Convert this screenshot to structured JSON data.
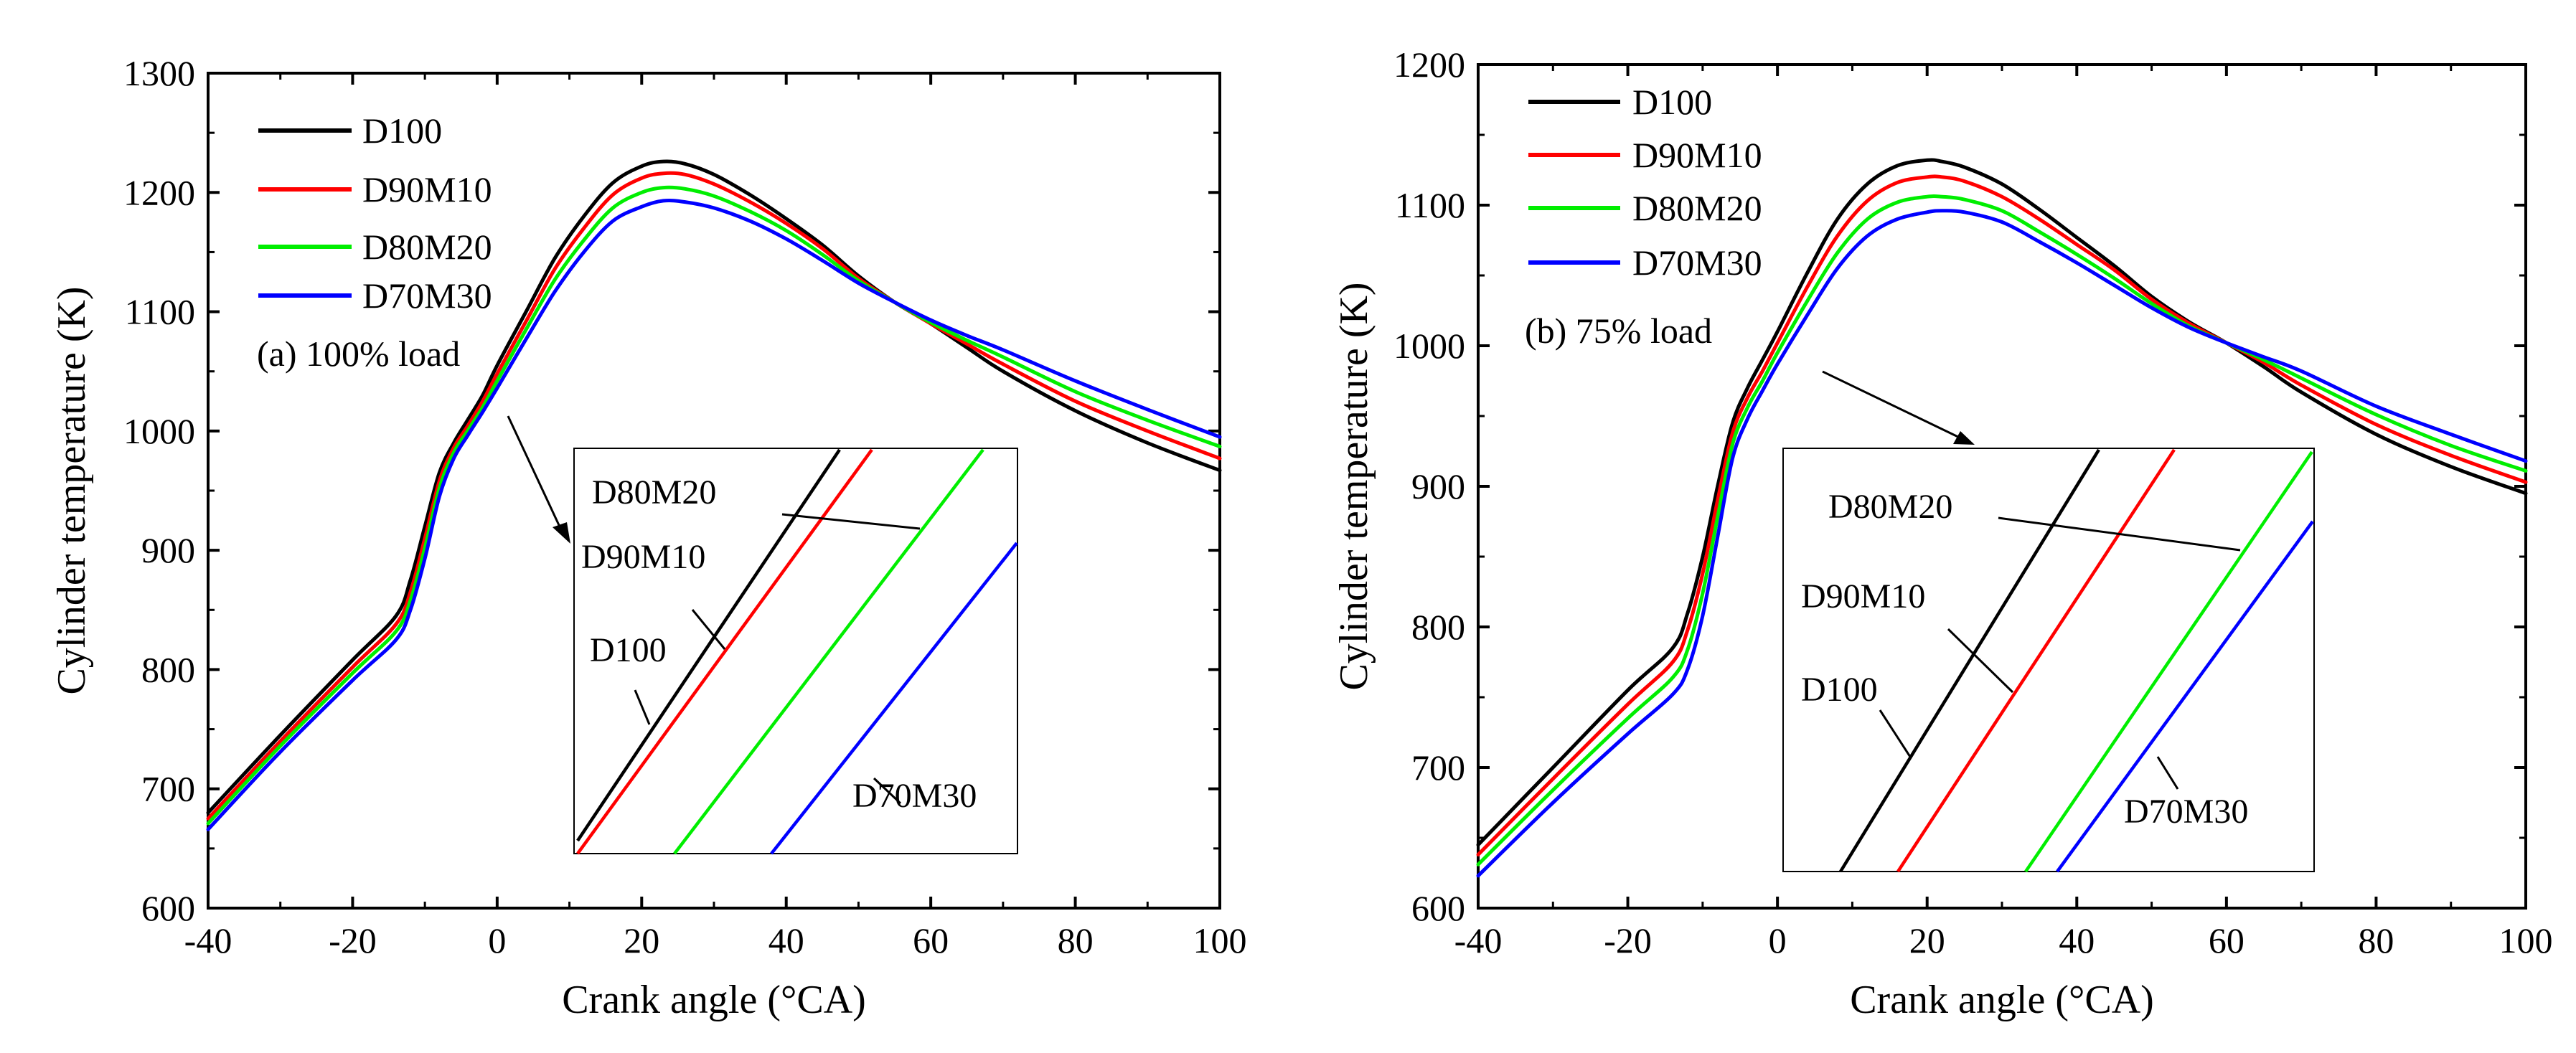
{
  "chart_data": [
    {
      "type": "line",
      "panel_label": "(a) 100% load",
      "xlabel": "Crank angle (°CA)",
      "ylabel": "Cylinder temperature (K)",
      "xlim": [
        -40,
        100
      ],
      "ylim": [
        600,
        1300
      ],
      "xticks": [
        -40,
        -20,
        0,
        20,
        40,
        60,
        80,
        100
      ],
      "yticks": [
        600,
        700,
        800,
        900,
        1000,
        1100,
        1200,
        1300
      ],
      "x": [
        -40,
        -30,
        -20,
        -14,
        -12,
        -10,
        -8,
        -6,
        -4,
        -2,
        0,
        4,
        8,
        12,
        16,
        20,
        23,
        26,
        30,
        35,
        40,
        45,
        50,
        55,
        60,
        65,
        70,
        80,
        90,
        100
      ],
      "legend_position": "top-left",
      "series": [
        {
          "name": "D100",
          "color": "#000000",
          "values": [
            680,
            745,
            808,
            845,
            875,
            920,
            965,
            990,
            1010,
            1030,
            1055,
            1100,
            1145,
            1180,
            1208,
            1222,
            1226,
            1224,
            1215,
            1198,
            1178,
            1156,
            1130,
            1108,
            1090,
            1070,
            1050,
            1017,
            990,
            967
          ]
        },
        {
          "name": "D90M10",
          "color": "#ff0000",
          "values": [
            675,
            740,
            802,
            838,
            865,
            910,
            958,
            986,
            1005,
            1025,
            1048,
            1092,
            1136,
            1170,
            1198,
            1212,
            1216,
            1215,
            1207,
            1192,
            1174,
            1153,
            1128,
            1108,
            1090,
            1073,
            1056,
            1025,
            1000,
            977
          ]
        },
        {
          "name": "D80M20",
          "color": "#00ee00",
          "values": [
            671,
            736,
            797,
            832,
            858,
            902,
            952,
            982,
            1001,
            1020,
            1042,
            1085,
            1127,
            1160,
            1187,
            1200,
            1204,
            1203,
            1197,
            1184,
            1168,
            1148,
            1126,
            1108,
            1091,
            1076,
            1062,
            1033,
            1009,
            987
          ]
        },
        {
          "name": "D70M30",
          "color": "#0000ff",
          "values": [
            666,
            731,
            791,
            825,
            850,
            893,
            945,
            977,
            997,
            1016,
            1036,
            1077,
            1117,
            1150,
            1176,
            1188,
            1193,
            1192,
            1187,
            1176,
            1161,
            1143,
            1124,
            1108,
            1093,
            1080,
            1068,
            1042,
            1018,
            995
          ]
        }
      ],
      "annotations": [
        "D80M20",
        "D90M10",
        "D100",
        "D70M30"
      ]
    },
    {
      "type": "line",
      "panel_label": "(b) 75% load",
      "xlabel": "Crank angle (°CA)",
      "ylabel": "Cylinder temperature (K)",
      "xlim": [
        -40,
        100
      ],
      "ylim": [
        600,
        1200
      ],
      "xticks": [
        -40,
        -20,
        0,
        20,
        40,
        60,
        80,
        100
      ],
      "yticks": [
        600,
        700,
        800,
        900,
        1000,
        1100,
        1200
      ],
      "x": [
        -40,
        -30,
        -20,
        -14,
        -12,
        -10,
        -8,
        -6,
        -4,
        -2,
        0,
        4,
        8,
        12,
        16,
        20,
        22,
        25,
        30,
        35,
        40,
        45,
        50,
        55,
        60,
        65,
        70,
        80,
        90,
        100
      ],
      "legend_position": "top-left",
      "series": [
        {
          "name": "D100",
          "color": "#000000",
          "values": [
            645,
            700,
            755,
            785,
            810,
            850,
            900,
            945,
            970,
            990,
            1010,
            1052,
            1090,
            1115,
            1128,
            1132,
            1131,
            1127,
            1115,
            1097,
            1077,
            1057,
            1035,
            1017,
            1002,
            985,
            967,
            937,
            914,
            895
          ]
        },
        {
          "name": "D90M10",
          "color": "#ff0000",
          "values": [
            638,
            692,
            745,
            775,
            798,
            838,
            890,
            938,
            963,
            982,
            1002,
            1042,
            1078,
            1103,
            1116,
            1120,
            1120,
            1117,
            1106,
            1090,
            1072,
            1054,
            1033,
            1016,
            1002,
            988,
            972,
            944,
            922,
            903
          ]
        },
        {
          "name": "D80M20",
          "color": "#00ee00",
          "values": [
            631,
            684,
            735,
            764,
            784,
            824,
            878,
            930,
            956,
            975,
            995,
            1032,
            1066,
            1090,
            1102,
            1106,
            1106,
            1104,
            1096,
            1081,
            1065,
            1048,
            1030,
            1014,
            1002,
            990,
            977,
            951,
            929,
            911
          ]
        },
        {
          "name": "D70M30",
          "color": "#0000ff",
          "values": [
            623,
            675,
            724,
            752,
            770,
            808,
            864,
            920,
            948,
            968,
            987,
            1022,
            1055,
            1078,
            1090,
            1095,
            1096,
            1095,
            1088,
            1074,
            1059,
            1043,
            1027,
            1013,
            1002,
            992,
            982,
            957,
            937,
            918
          ]
        }
      ],
      "annotations": [
        "D80M20",
        "D90M10",
        "D100",
        "D70M30"
      ]
    }
  ]
}
